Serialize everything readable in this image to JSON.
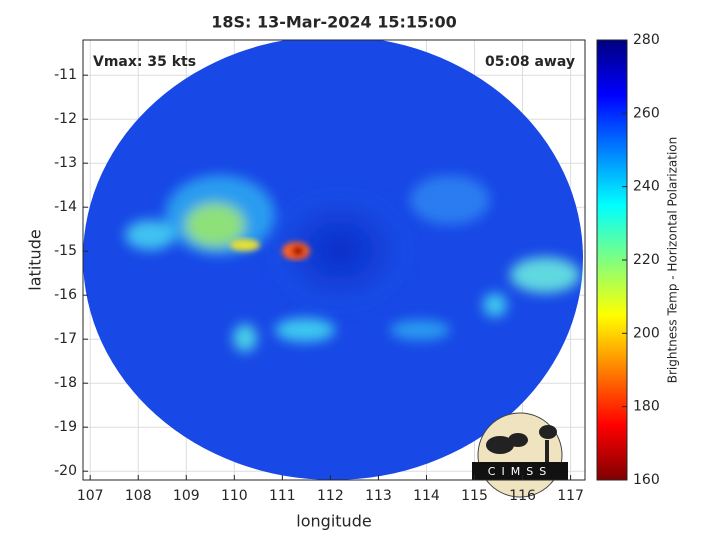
{
  "chart_data": {
    "type": "image",
    "title": "18S: 13-Mar-2024 15:15:00",
    "annotations": {
      "left": "Vmax: 35 kts",
      "right": "05:08 away",
      "logo": "CIMSS"
    },
    "xlabel": "longitude",
    "ylabel": "latitude",
    "xlim": [
      106.85,
      117.3
    ],
    "xticks": [
      107,
      108,
      109,
      110,
      111,
      112,
      113,
      114,
      115,
      116,
      117
    ],
    "ylim": [
      -20.2,
      -10.2
    ],
    "yticks": [
      -20,
      -19,
      -18,
      -17,
      -16,
      -15,
      -14,
      -13,
      -12,
      -11
    ],
    "grid": true,
    "colormap": "jet",
    "colorbar": {
      "label": "Brightness Temp - Horizontal Polarization",
      "clim": [
        160,
        280
      ],
      "ticks": [
        160,
        180,
        200,
        220,
        240,
        260,
        280
      ]
    }
  }
}
